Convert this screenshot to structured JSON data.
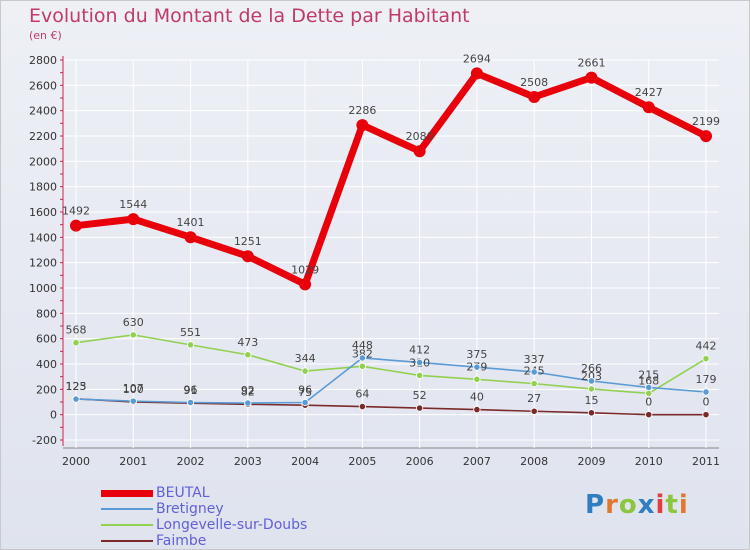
{
  "chart_data": {
    "type": "line",
    "title": "Evolution du Montant de la Dette par Habitant",
    "subtitle": "(en €)",
    "x": [
      "2000",
      "2001",
      "2002",
      "2003",
      "2004",
      "2005",
      "2006",
      "2007",
      "2008",
      "2009",
      "2010",
      "2011"
    ],
    "ylim": [
      -200,
      2800
    ],
    "yticks": [
      -200,
      0,
      200,
      400,
      600,
      800,
      1000,
      1200,
      1400,
      1600,
      1800,
      2000,
      2200,
      2400,
      2600,
      2800
    ],
    "series": [
      {
        "name": "BEUTAL",
        "color": "#e8000b",
        "values": [
          1492,
          1544,
          1401,
          1251,
          1029,
          2286,
          2080,
          2694,
          2508,
          2661,
          2427,
          2199
        ]
      },
      {
        "name": "Bretigney",
        "color": "#5b9bd5",
        "values": [
          123,
          107,
          96,
          92,
          96,
          448,
          412,
          375,
          337,
          266,
          215,
          179
        ]
      },
      {
        "name": "Longevelle-sur-Doubs",
        "color": "#92d050",
        "values": [
          568,
          630,
          551,
          473,
          344,
          382,
          310,
          279,
          245,
          203,
          168,
          442
        ]
      },
      {
        "name": "Faimbe",
        "color": "#7b2a2a",
        "values": [
          125,
          100,
          91,
          82,
          75,
          64,
          52,
          40,
          27,
          15,
          0,
          0
        ]
      }
    ]
  },
  "logo": {
    "text": "Proxiti"
  }
}
